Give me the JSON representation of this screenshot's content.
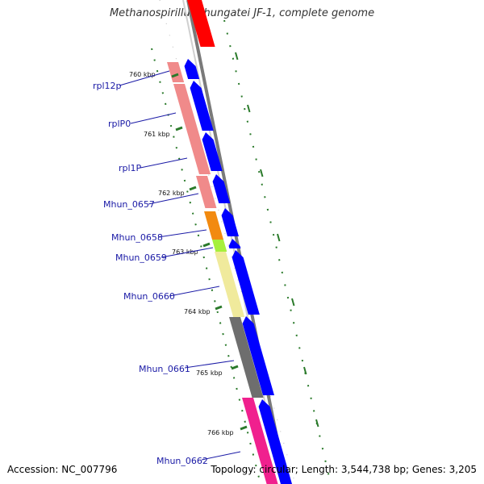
{
  "title": "Methanospirillum hungatei JF-1, complete genome",
  "accession": "Accession: NC_007796",
  "summary": "Topology: circular; Length: 3,544,738 bp; Genes: 3,205",
  "ticks": [
    "760 kbp",
    "761 kbp",
    "762 kbp",
    "763 kbp",
    "764 kbp",
    "765 kbp",
    "766 kbp"
  ],
  "genes": [
    {
      "name": "rpl12p",
      "color": "#f08a8a"
    },
    {
      "name": "rplP0",
      "color": "#f08a8a"
    },
    {
      "name": "rpl1P",
      "color": "#f08a8a"
    },
    {
      "name": "Mhun_0657",
      "color": "#f08a8a"
    },
    {
      "name": "Mhun_0658",
      "color": "#f28a10"
    },
    {
      "name": "Mhun_0659",
      "color": "#a6f03c"
    },
    {
      "name": "Mhun_0660",
      "color": "#f0ea9c"
    },
    {
      "name": "Mhun_0661",
      "color": "#6e6e6e"
    },
    {
      "name": "Mhun_0662",
      "color": "#f0208e"
    }
  ],
  "colors": {
    "cds_arrow": "#0000ff",
    "backbone": "#7a7a7a",
    "tick": "#2a7a2a",
    "top_feature": "#ff0000"
  }
}
